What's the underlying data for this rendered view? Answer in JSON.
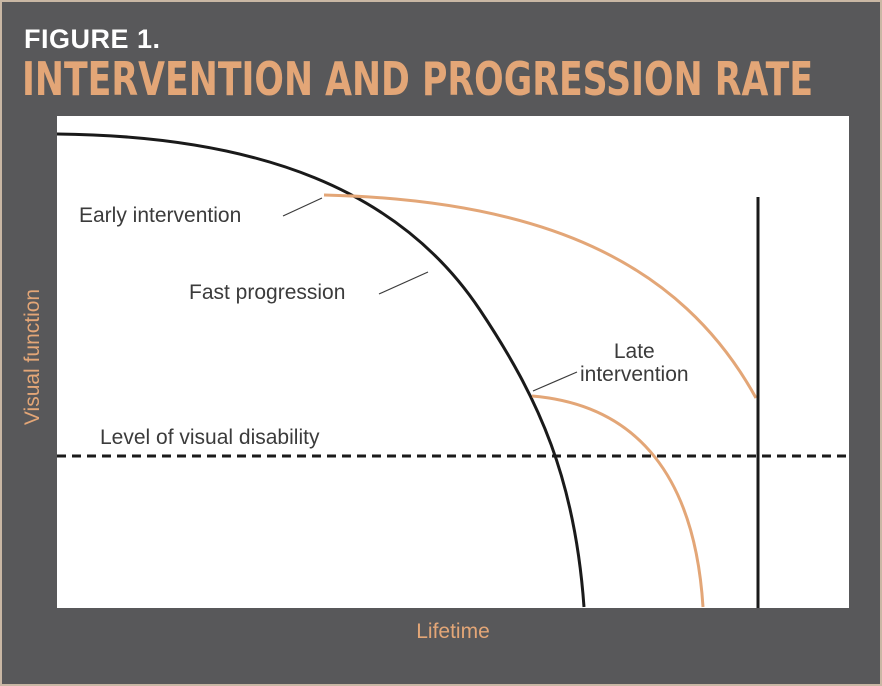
{
  "header": {
    "figure_label": "FIGURE 1.",
    "title": "INTERVENTION AND PROGRESSION RATE"
  },
  "axes": {
    "y_label": "Visual function",
    "x_label": "Lifetime"
  },
  "annotations": {
    "early_intervention": "Early intervention",
    "fast_progression": "Fast progression",
    "late_intervention_line1": "Late",
    "late_intervention_line2": "intervention",
    "disability_level": "Level of visual disability"
  },
  "colors": {
    "background": "#58585a",
    "accent": "#e3a677",
    "curve_primary": "#1a1a1a",
    "plot_bg": "#ffffff",
    "text_dark": "#3b3b3b"
  }
}
